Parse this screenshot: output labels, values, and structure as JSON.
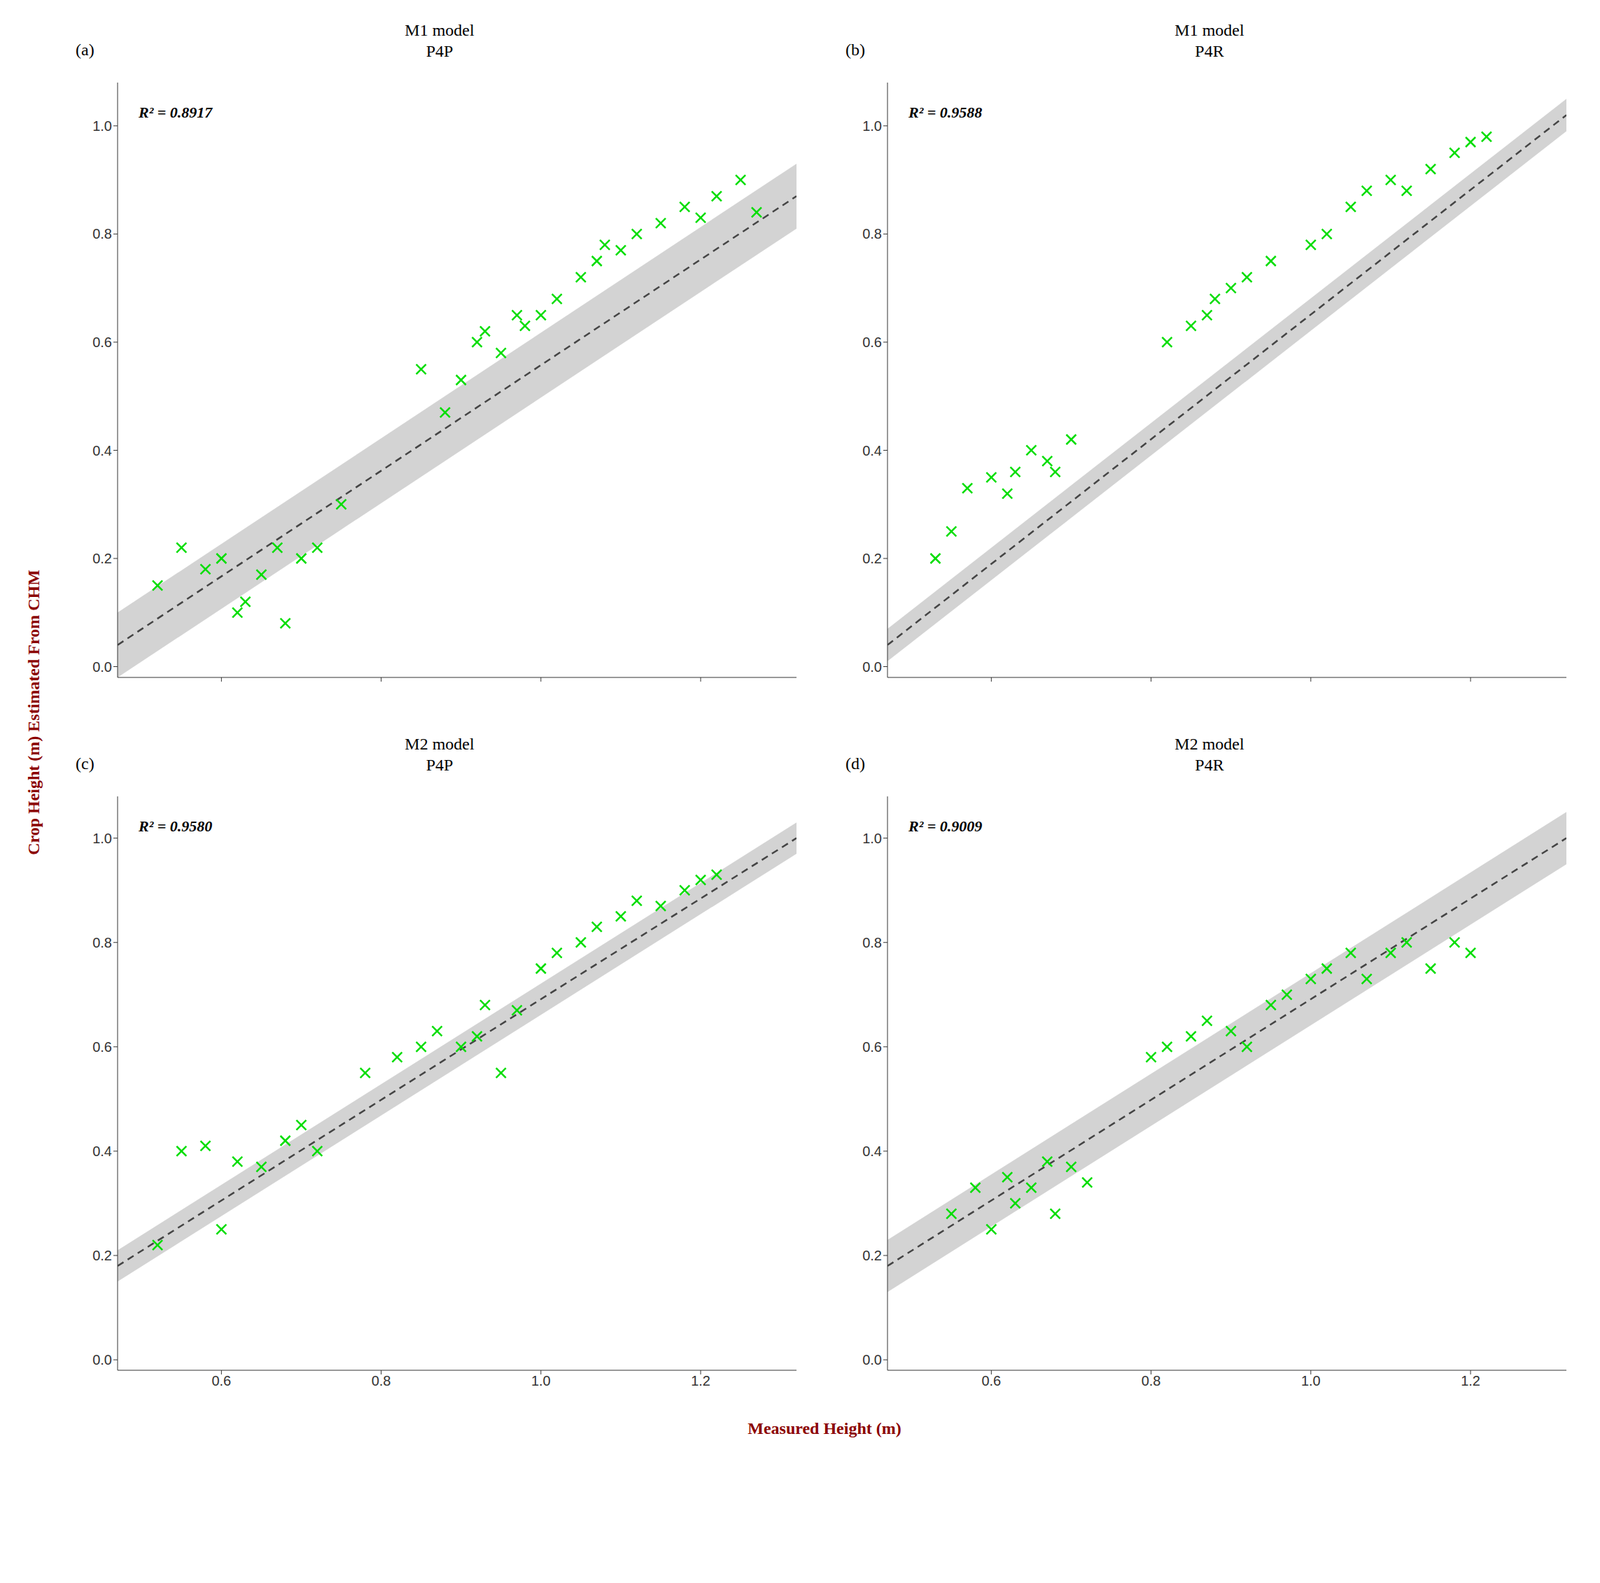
{
  "chart_data": {
    "type": "scatter",
    "xlabel": "Measured Height (m)",
    "ylabel": "Crop Height (m) Estimated From CHM",
    "label_color": "#8B0000",
    "grid": false,
    "panels": [
      {
        "type": "scatter",
        "title": "M1 model",
        "subtitle": "P4P",
        "annotations": [
          "(a)",
          "R² = 0.8917"
        ],
        "xlim": [
          0.47,
          1.32
        ],
        "ylim": [
          -0.02,
          1.08
        ],
        "xticks": [
          0.6,
          0.8,
          1.0,
          {
            "value": 1.2,
            "label": "1.2"
          }
        ],
        "yticks": [
          {
            "value": 0.0,
            "label": "0.0"
          },
          0.2,
          0.4,
          0.6,
          0.8,
          {
            "value": 1.0,
            "label": "1.0"
          }
        ],
        "tick_labels": "y",
        "x": [
          0.52,
          0.55,
          0.58,
          0.6,
          0.62,
          0.63,
          0.65,
          0.67,
          0.68,
          0.7,
          0.72,
          0.75,
          0.85,
          0.88,
          0.9,
          0.92,
          0.93,
          0.95,
          0.97,
          0.98,
          1.0,
          1.02,
          1.05,
          1.07,
          1.08,
          1.1,
          1.12,
          1.15,
          1.18,
          1.2,
          1.22,
          1.25,
          1.27
        ],
        "values": [
          0.15,
          0.22,
          0.18,
          0.2,
          0.1,
          0.12,
          0.17,
          0.22,
          0.08,
          0.2,
          0.22,
          0.3,
          0.55,
          0.47,
          0.53,
          0.6,
          0.62,
          0.58,
          0.65,
          0.63,
          0.65,
          0.68,
          0.72,
          0.75,
          0.78,
          0.77,
          0.8,
          0.82,
          0.85,
          0.83,
          0.87,
          0.9,
          0.84
        ],
        "color": "#00DD00",
        "marker": "x",
        "fit": {
          "x": [
            0.47,
            1.32
          ],
          "values": [
            0.04,
            0.87
          ],
          "color": "#444444",
          "line_style": "dashed"
        },
        "band": {
          "x": [
            0.47,
            1.32
          ],
          "lower": [
            -0.02,
            0.81
          ],
          "upper": [
            0.1,
            0.93
          ],
          "color": "#BBBBBB"
        }
      },
      {
        "type": "scatter",
        "title": "M1 model",
        "subtitle": "P4R",
        "annotations": [
          "(b)",
          "R² = 0.9588"
        ],
        "xlim": [
          0.47,
          1.32
        ],
        "ylim": [
          -0.02,
          1.08
        ],
        "xticks": [
          0.6,
          0.8,
          {
            "value": 1.0,
            "label": "1.0"
          },
          1.2
        ],
        "yticks": [
          {
            "value": 0.0,
            "label": "0.0"
          },
          0.2,
          0.4,
          0.6,
          0.8,
          {
            "value": 1.0,
            "label": "1.0"
          }
        ],
        "tick_labels": "y",
        "x": [
          0.53,
          0.55,
          0.57,
          0.6,
          0.62,
          0.63,
          0.65,
          0.67,
          0.68,
          0.7,
          0.82,
          0.85,
          0.87,
          0.88,
          0.9,
          0.92,
          0.95,
          1.0,
          1.02,
          1.05,
          1.07,
          1.1,
          1.12,
          1.15,
          1.18,
          1.2,
          1.22
        ],
        "values": [
          0.2,
          0.25,
          0.33,
          0.35,
          0.32,
          0.36,
          0.4,
          0.38,
          0.36,
          0.42,
          0.6,
          0.63,
          0.65,
          0.68,
          0.7,
          0.72,
          0.75,
          0.78,
          0.8,
          0.85,
          0.88,
          0.9,
          0.88,
          0.92,
          0.95,
          0.97,
          0.98
        ],
        "color": "#00DD00",
        "marker": "x",
        "fit": {
          "x": [
            0.47,
            1.32
          ],
          "values": [
            0.04,
            1.02
          ],
          "color": "#444444",
          "line_style": "dashed"
        },
        "band": {
          "x": [
            0.47,
            1.32
          ],
          "lower": [
            0.01,
            0.99
          ],
          "upper": [
            0.07,
            1.05
          ],
          "color": "#BBBBBB"
        }
      },
      {
        "type": "scatter",
        "title": "M2 model",
        "subtitle": "P4P",
        "annotations": [
          "(c)",
          "R² = 0.9580"
        ],
        "xlim": [
          0.47,
          1.32
        ],
        "ylim": [
          -0.02,
          1.08
        ],
        "xticks": [
          0.6,
          0.8,
          {
            "value": 1.0,
            "label": "1.0"
          },
          1.2
        ],
        "yticks": [
          {
            "value": 0.0,
            "label": "0.0"
          },
          0.2,
          0.4,
          0.6,
          0.8,
          {
            "value": 1.0,
            "label": "1.0"
          }
        ],
        "x": [
          0.52,
          0.55,
          0.58,
          0.6,
          0.62,
          0.65,
          0.68,
          0.7,
          0.72,
          0.78,
          0.82,
          0.85,
          0.87,
          0.9,
          0.92,
          0.93,
          0.95,
          0.97,
          1.0,
          1.02,
          1.05,
          1.07,
          1.1,
          1.12,
          1.15,
          1.18,
          1.2,
          1.22
        ],
        "values": [
          0.22,
          0.4,
          0.41,
          0.25,
          0.38,
          0.37,
          0.42,
          0.45,
          0.4,
          0.55,
          0.58,
          0.6,
          0.63,
          0.6,
          0.62,
          0.68,
          0.55,
          0.67,
          0.75,
          0.78,
          0.8,
          0.83,
          0.85,
          0.88,
          0.87,
          0.9,
          0.92,
          0.93
        ],
        "color": "#00DD00",
        "marker": "x",
        "fit": {
          "x": [
            0.47,
            1.32
          ],
          "values": [
            0.18,
            1.0
          ],
          "color": "#444444",
          "line_style": "dashed"
        },
        "band": {
          "x": [
            0.47,
            1.32
          ],
          "lower": [
            0.15,
            0.97
          ],
          "upper": [
            0.21,
            1.03
          ],
          "color": "#BBBBBB"
        }
      },
      {
        "type": "scatter",
        "title": "M2 model",
        "subtitle": "P4R",
        "annotations": [
          "(d)",
          "R² = 0.9009"
        ],
        "xlim": [
          0.47,
          1.32
        ],
        "ylim": [
          -0.02,
          1.08
        ],
        "xticks": [
          0.6,
          0.8,
          {
            "value": 1.0,
            "label": "1.0"
          },
          1.2
        ],
        "yticks": [
          {
            "value": 0.0,
            "label": "0.0"
          },
          0.2,
          0.4,
          0.6,
          0.8,
          {
            "value": 1.0,
            "label": "1.0"
          }
        ],
        "x": [
          0.55,
          0.58,
          0.6,
          0.62,
          0.63,
          0.65,
          0.67,
          0.68,
          0.7,
          0.72,
          0.8,
          0.82,
          0.85,
          0.87,
          0.9,
          0.92,
          0.95,
          0.97,
          1.0,
          1.02,
          1.05,
          1.07,
          1.1,
          1.12,
          1.15,
          1.18,
          1.2
        ],
        "values": [
          0.28,
          0.33,
          0.25,
          0.35,
          0.3,
          0.33,
          0.38,
          0.28,
          0.37,
          0.34,
          0.58,
          0.6,
          0.62,
          0.65,
          0.63,
          0.6,
          0.68,
          0.7,
          0.73,
          0.75,
          0.78,
          0.73,
          0.78,
          0.8,
          0.75,
          0.8,
          0.78
        ],
        "color": "#00DD00",
        "marker": "x",
        "fit": {
          "x": [
            0.47,
            1.32
          ],
          "values": [
            0.18,
            1.0
          ],
          "color": "#444444",
          "line_style": "dashed"
        },
        "band": {
          "x": [
            0.47,
            1.32
          ],
          "lower": [
            0.13,
            0.95
          ],
          "upper": [
            0.23,
            1.05
          ],
          "color": "#BBBBBB"
        }
      }
    ]
  }
}
